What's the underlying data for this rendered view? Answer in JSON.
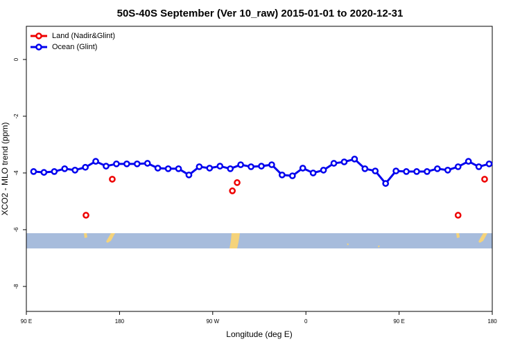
{
  "chart_data": {
    "type": "line",
    "title": "50S-40S September (Ver 10_raw)   2015-01-01 to 2020-12-31",
    "x_label": "Longitude (deg E)",
    "y_label": "XCO2 - MLO trend (ppm)",
    "xlim": [
      90,
      540
    ],
    "ylim": [
      -8.88,
      1.17
    ],
    "xticks": [
      {
        "value": 90,
        "label": "90 E"
      },
      180,
      {
        "value": 270,
        "label": "90 W"
      },
      {
        "value": 360,
        "label": "0"
      },
      {
        "value": 450,
        "label": "90 E"
      },
      {
        "value": 540,
        "label": "180"
      }
    ],
    "yticks": [
      0,
      -2,
      -4,
      -6,
      -8
    ],
    "legend": "top-left",
    "series": [
      {
        "name": "Land (Nadir&Glint)",
        "color": "#ee0000",
        "line": false,
        "x": [
          147.6,
          173,
          289,
          293.6,
          507,
          532.6
        ],
        "values": [
          -5.49,
          -4.22,
          -4.63,
          -4.34,
          -5.49,
          -4.22
        ]
      },
      {
        "name": "Ocean (Glint)",
        "color": "#0000ee",
        "line": true,
        "x": [
          97,
          107,
          117,
          127,
          137,
          147,
          157,
          167,
          177,
          187,
          197,
          207,
          217,
          227,
          237,
          247,
          257,
          267,
          277,
          287,
          297,
          307,
          317,
          327,
          337,
          347,
          357,
          367,
          377,
          387,
          397,
          407,
          417,
          427,
          437,
          447,
          457,
          467,
          477,
          487,
          497,
          507,
          517,
          527,
          537
        ],
        "values": [
          -3.95,
          -3.98,
          -3.95,
          -3.85,
          -3.9,
          -3.8,
          -3.59,
          -3.76,
          -3.68,
          -3.68,
          -3.68,
          -3.66,
          -3.83,
          -3.85,
          -3.85,
          -4.07,
          -3.78,
          -3.83,
          -3.76,
          -3.85,
          -3.71,
          -3.78,
          -3.76,
          -3.71,
          -4.07,
          -4.1,
          -3.83,
          -4.0,
          -3.9,
          -3.66,
          -3.61,
          -3.51,
          -3.85,
          -3.93,
          -4.37,
          -3.93,
          -3.95,
          -3.95,
          -3.95,
          -3.85,
          -3.9,
          -3.78,
          -3.59,
          -3.78,
          -3.68
        ]
      }
    ]
  }
}
